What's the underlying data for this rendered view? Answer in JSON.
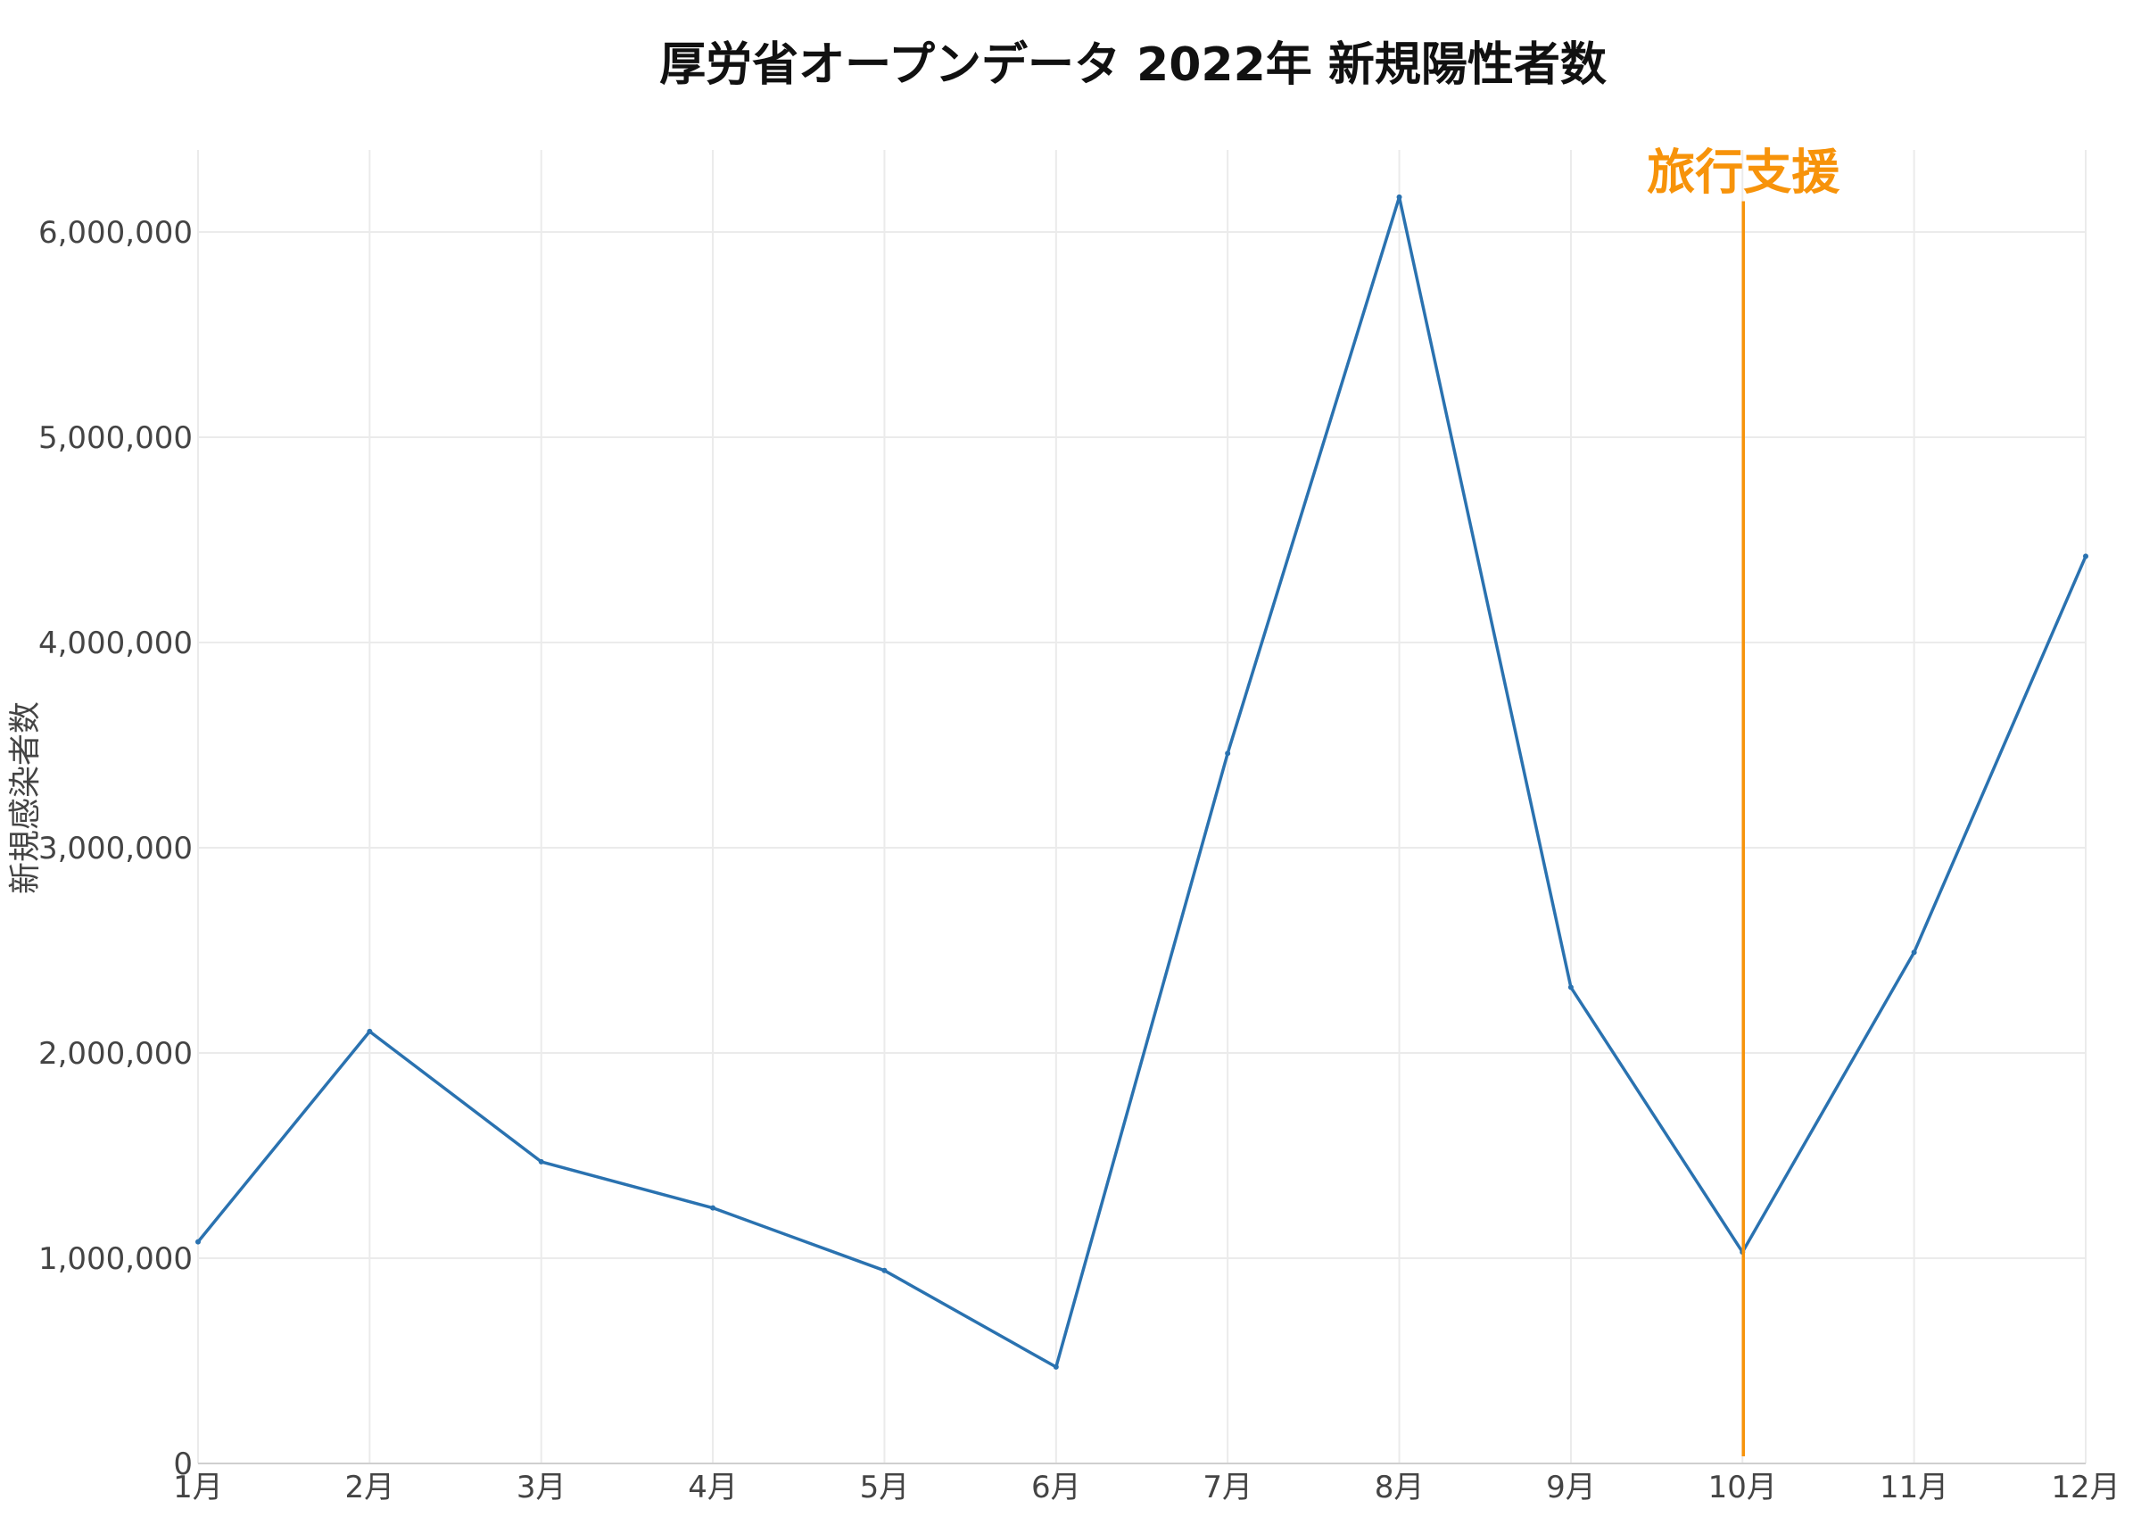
{
  "chart_data": {
    "type": "line",
    "title": "厚労省オープンデータ 2022年 新規陽性者数",
    "xlabel": "",
    "ylabel": "新規感染者数",
    "categories": [
      "1月",
      "2月",
      "3月",
      "4月",
      "5月",
      "6月",
      "7月",
      "8月",
      "9月",
      "10月",
      "11月",
      "12月"
    ],
    "series": [
      {
        "values": [
          1080000,
          2105000,
          1470000,
          1245000,
          940000,
          470000,
          3460000,
          6170000,
          2320000,
          1030000,
          2490000,
          4420000
        ],
        "color": "#2a72b0"
      }
    ],
    "ylim": [
      0,
      6400000
    ],
    "yticks": [
      0,
      1000000,
      2000000,
      3000000,
      4000000,
      5000000,
      6000000
    ],
    "ytick_labels": [
      "0",
      "1,000,000",
      "2,000,000",
      "3,000,000",
      "4,000,000",
      "5,000,000",
      "6,000,000"
    ],
    "grid": true,
    "annotation": {
      "label": "旅行支援",
      "x_category": "10月",
      "y_top": 6150000,
      "color": "#f7930a"
    }
  }
}
